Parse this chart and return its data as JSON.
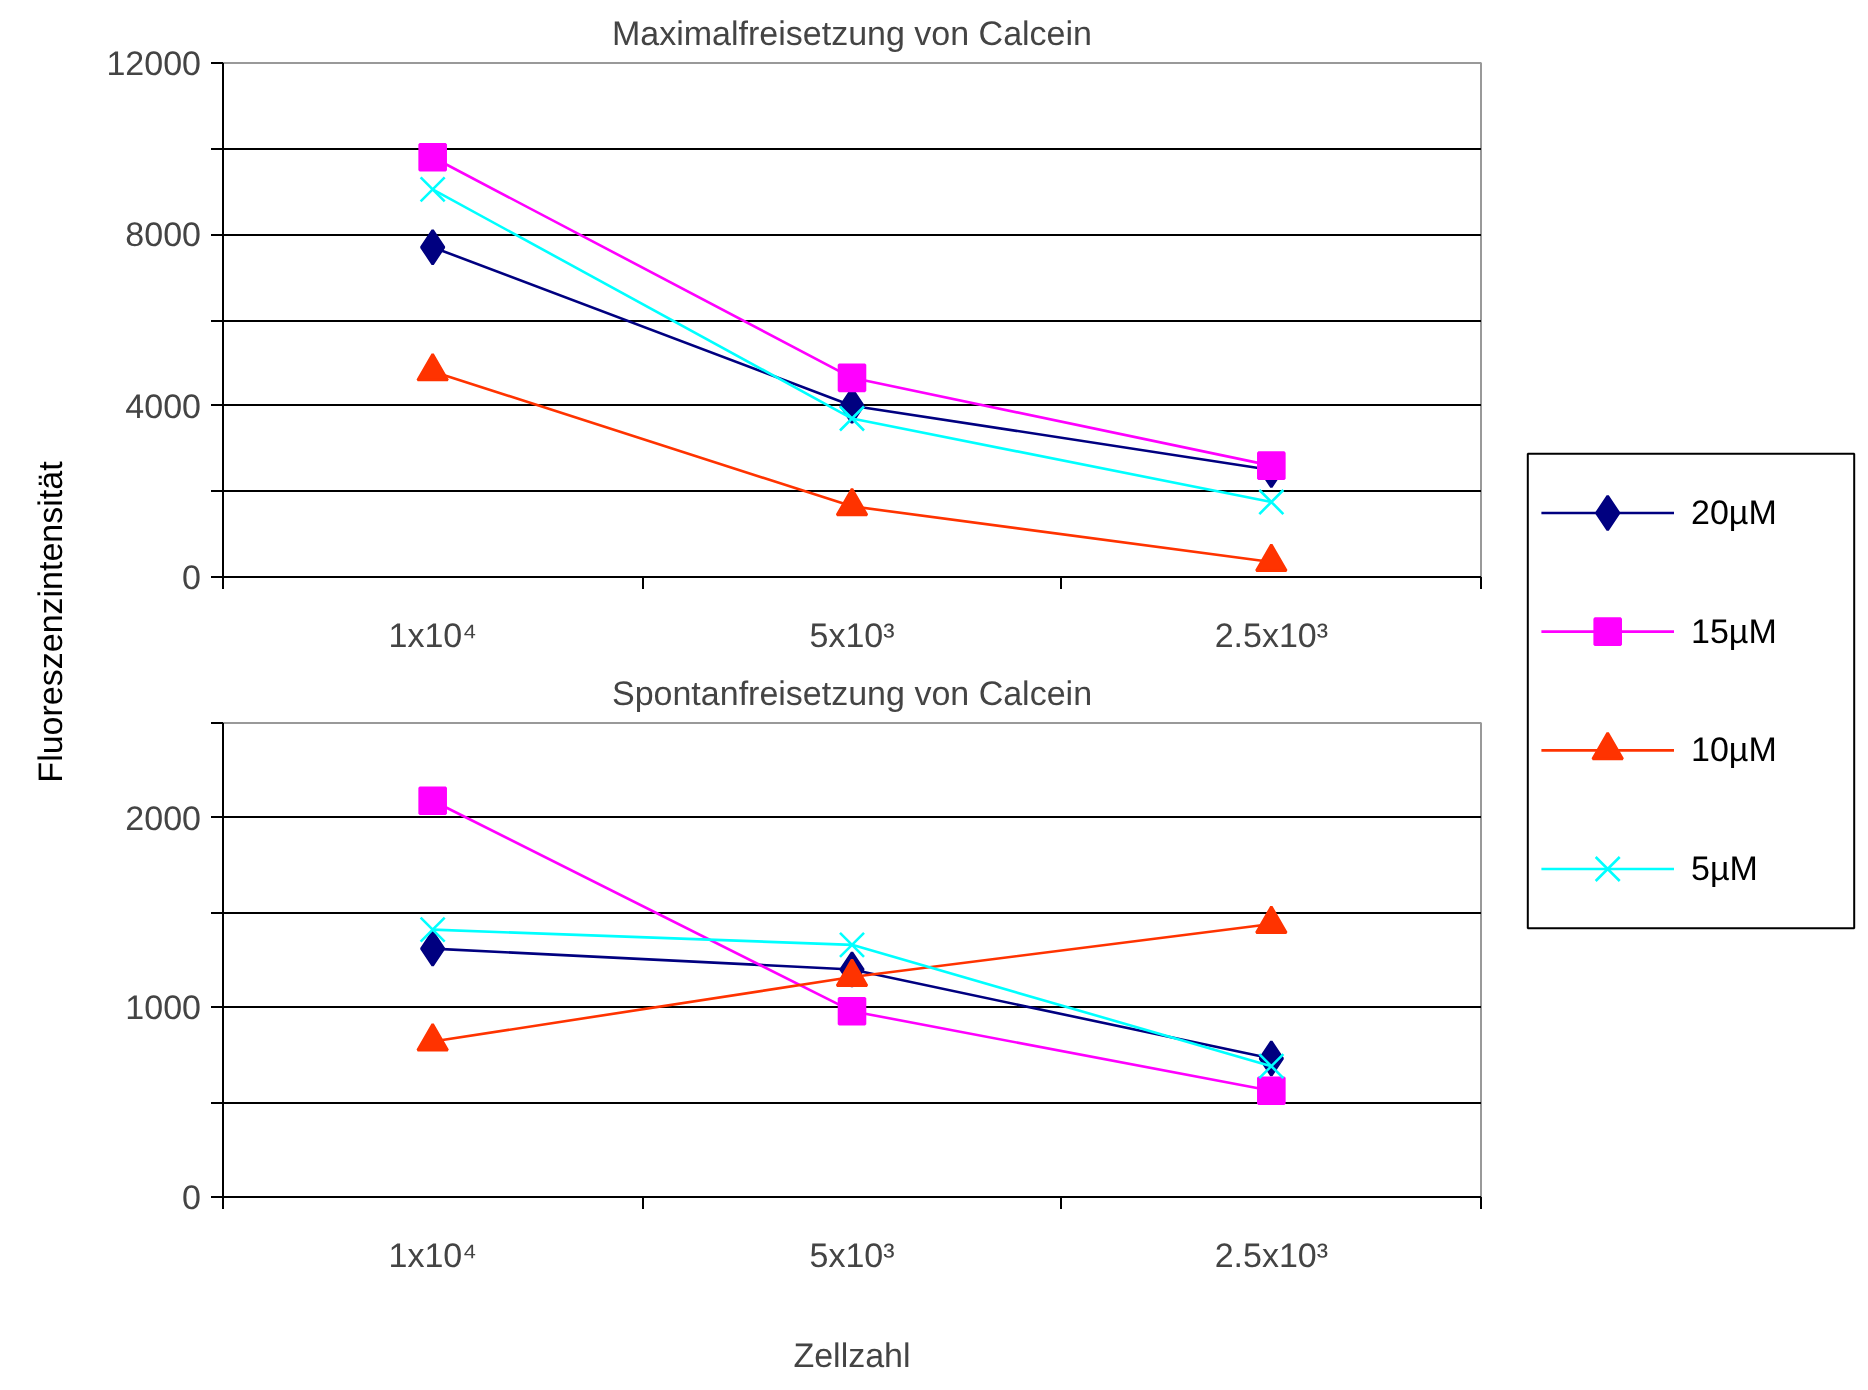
{
  "chart_data": [
    {
      "type": "line",
      "title": "Maximalfreisetzung von Calcein",
      "ylabel": "Fluoreszenzintensität",
      "categories": [
        "1x10⁴",
        "5x10³",
        "2.5x10³"
      ],
      "ylim": [
        0,
        12000
      ],
      "yticks": [
        0,
        {
          "value": 2000,
          "label": null
        },
        4000,
        {
          "value": 6000,
          "label": null
        },
        8000,
        {
          "value": 10000,
          "label": null
        },
        12000
      ],
      "grid": "y",
      "legend": "right",
      "series": [
        {
          "name": "20µM",
          "color": "#000080",
          "marker": "diamond",
          "values": [
            7700,
            4000,
            2500
          ]
        },
        {
          "name": "15µM",
          "color": "#ff00ff",
          "marker": "square",
          "values": [
            9800,
            4650,
            2600
          ]
        },
        {
          "name": "10µM",
          "color": "#ff3300",
          "marker": "triangle",
          "values": [
            4800,
            1650,
            350
          ]
        },
        {
          "name": "5µM",
          "color": "#00ffff",
          "marker": "cross",
          "values": [
            9050,
            3700,
            1750
          ]
        }
      ]
    },
    {
      "type": "line",
      "title": "Spontanfreisetzung von Calcein",
      "xlabel": "Zellzahl",
      "categories": [
        "1x10⁴",
        "5x10³",
        "2.5x10³"
      ],
      "ylim": [
        0,
        2500
      ],
      "yticks": [
        0,
        {
          "value": 500,
          "label": null
        },
        1000,
        {
          "value": 1500,
          "label": null
        },
        2000,
        {
          "value": 2500,
          "label": null
        }
      ],
      "grid": "y",
      "legend": false,
      "series": [
        {
          "color": "#000080",
          "marker": "diamond",
          "values": [
            1310,
            1200,
            730
          ]
        },
        {
          "color": "#ff00ff",
          "marker": "square",
          "values": [
            2090,
            980,
            560
          ]
        },
        {
          "color": "#ff3300",
          "marker": "triangle",
          "values": [
            820,
            1160,
            1440
          ]
        },
        {
          "color": "#00ffff",
          "marker": "cross",
          "values": [
            1410,
            1330,
            690
          ]
        }
      ]
    }
  ]
}
